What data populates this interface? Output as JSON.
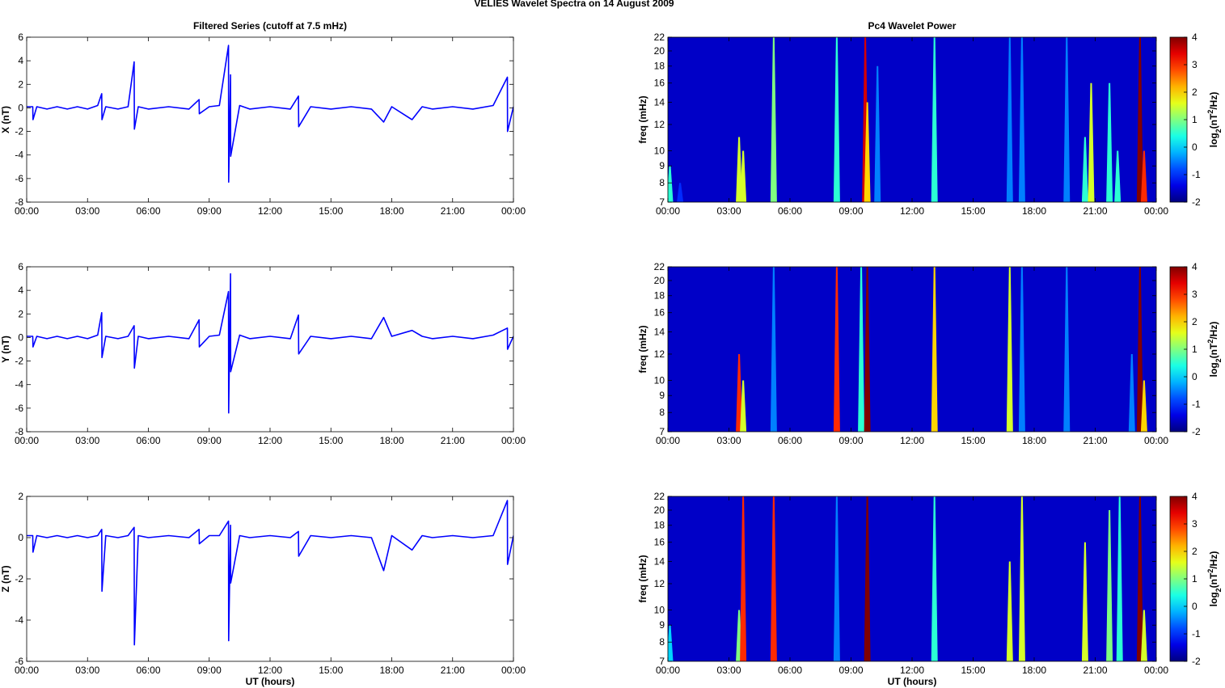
{
  "title": "VELIES Wavelet Spectra on 14 August    2009",
  "chart_data": [
    {
      "type": "line",
      "title": "Filtered Series (cutoff at 7.5 mHz)",
      "ylabel": "X (nT)",
      "color": "#0000ff",
      "x": [
        0,
        0.3,
        0.31,
        0.5,
        1,
        1.5,
        2,
        2.5,
        3,
        3.5,
        3.7,
        3.71,
        3.9,
        4.5,
        5,
        5.3,
        5.31,
        5.5,
        6,
        7,
        8,
        8.5,
        8.51,
        9,
        9.5,
        9.95,
        9.96,
        10.05,
        10.06,
        10.5,
        11,
        12,
        13,
        13.4,
        13.41,
        14,
        15,
        16,
        17,
        17.6,
        18,
        19,
        19.5,
        20,
        21,
        22,
        23,
        23.7,
        23.71,
        24
      ],
      "values": [
        0.1,
        0.1,
        -1.0,
        0.1,
        -0.1,
        0.1,
        -0.1,
        0.1,
        -0.1,
        0.2,
        1.2,
        -1.0,
        0.1,
        -0.1,
        0.1,
        3.9,
        -1.8,
        0.1,
        -0.1,
        0.1,
        -0.1,
        0.7,
        -0.5,
        0.1,
        0.2,
        5.3,
        -6.3,
        2.8,
        -4.1,
        0.2,
        -0.1,
        0.1,
        -0.1,
        1.0,
        -1.6,
        0.1,
        -0.1,
        0.1,
        -0.1,
        -1.2,
        0.1,
        -1.0,
        0.1,
        -0.1,
        0.1,
        -0.1,
        0.2,
        2.6,
        -2.0,
        0.1
      ],
      "xlim": [
        0,
        24
      ],
      "xticks": [
        {
          "value": 0,
          "label": "00:00"
        },
        {
          "value": 3,
          "label": "03:00"
        },
        {
          "value": 6,
          "label": "06:00"
        },
        {
          "value": 9,
          "label": "09:00"
        },
        {
          "value": 12,
          "label": "12:00"
        },
        {
          "value": 15,
          "label": "15:00"
        },
        {
          "value": 18,
          "label": "18:00"
        },
        {
          "value": 21,
          "label": "21:00"
        },
        {
          "value": 24,
          "label": "00:00"
        }
      ],
      "ylim": [
        -8,
        6
      ],
      "yticks": [
        -8,
        -6,
        -4,
        -2,
        0,
        2,
        4,
        6
      ]
    },
    {
      "type": "heatmap",
      "title": "Pc4 Wavelet Power",
      "ylabel": "freq (mHz)",
      "log_y": true,
      "x": [
        0.1,
        0.6,
        3.5,
        3.7,
        5.2,
        8.3,
        9.7,
        9.8,
        10.3,
        13.1,
        16.8,
        17.4,
        19.6,
        20.5,
        20.8,
        21.7,
        22.1,
        23.2,
        23.4
      ],
      "values": [
        0.5,
        -1,
        1.5,
        1.5,
        1,
        0.5,
        3.5,
        2,
        -0.5,
        0.5,
        -0.5,
        -0.5,
        -0.5,
        0.5,
        1.5,
        0.5,
        0.5,
        4,
        3
      ],
      "ymax": [
        9,
        8,
        11,
        10,
        22,
        22,
        22,
        14,
        18,
        22,
        22,
        22,
        22,
        11,
        16,
        16,
        10,
        22,
        10
      ],
      "xlim": [
        0,
        24
      ],
      "xticks": [
        {
          "value": 0,
          "label": "00:00"
        },
        {
          "value": 3,
          "label": "03:00"
        },
        {
          "value": 6,
          "label": "06:00"
        },
        {
          "value": 9,
          "label": "09:00"
        },
        {
          "value": 12,
          "label": "12:00"
        },
        {
          "value": 15,
          "label": "15:00"
        },
        {
          "value": 18,
          "label": "18:00"
        },
        {
          "value": 21,
          "label": "21:00"
        },
        {
          "value": 24,
          "label": "00:00"
        }
      ],
      "ylim": [
        7,
        22
      ],
      "yticks": [
        7,
        8,
        9,
        10,
        12,
        14,
        16,
        18,
        20,
        22
      ],
      "clim": [
        -2,
        4
      ],
      "cticks": [
        -2,
        -1,
        0,
        1,
        2,
        3,
        4
      ],
      "colorbar_label": [
        "log",
        "2",
        "(nT",
        "2",
        "/Hz)"
      ]
    },
    {
      "type": "line",
      "ylabel": "Y (nT)",
      "color": "#0000ff",
      "x": [
        0,
        0.3,
        0.31,
        0.5,
        1,
        1.5,
        2,
        2.5,
        3,
        3.5,
        3.7,
        3.71,
        3.9,
        4.5,
        5,
        5.3,
        5.31,
        5.5,
        6,
        7,
        8,
        8.5,
        8.51,
        9,
        9.5,
        9.95,
        9.96,
        10.05,
        10.06,
        10.5,
        11,
        12,
        13,
        13.4,
        13.41,
        14,
        15,
        16,
        17,
        17.6,
        18,
        19,
        19.5,
        20,
        21,
        22,
        23,
        23.7,
        23.71,
        24
      ],
      "values": [
        0.1,
        0.1,
        -0.8,
        0.1,
        -0.1,
        0.1,
        -0.1,
        0.1,
        -0.1,
        0.2,
        2.1,
        -1.7,
        0.1,
        -0.1,
        0.1,
        1.0,
        -2.6,
        0.1,
        -0.1,
        0.1,
        -0.1,
        1.5,
        -0.8,
        0.1,
        0.2,
        3.9,
        -6.4,
        5.4,
        -2.9,
        0.2,
        -0.1,
        0.1,
        -0.1,
        1.9,
        -1.4,
        0.1,
        -0.1,
        0.1,
        -0.1,
        1.7,
        0.1,
        0.6,
        0.1,
        -0.1,
        0.1,
        -0.1,
        0.2,
        0.8,
        -1.0,
        0.1
      ],
      "xlim": [
        0,
        24
      ],
      "xticks": [
        {
          "value": 0,
          "label": "00:00"
        },
        {
          "value": 3,
          "label": "03:00"
        },
        {
          "value": 6,
          "label": "06:00"
        },
        {
          "value": 9,
          "label": "09:00"
        },
        {
          "value": 12,
          "label": "12:00"
        },
        {
          "value": 15,
          "label": "15:00"
        },
        {
          "value": 18,
          "label": "18:00"
        },
        {
          "value": 21,
          "label": "21:00"
        },
        {
          "value": 24,
          "label": "00:00"
        }
      ],
      "ylim": [
        -8,
        6
      ],
      "yticks": [
        -8,
        -6,
        -4,
        -2,
        0,
        2,
        4,
        6
      ]
    },
    {
      "type": "heatmap",
      "ylabel": "freq (mHz)",
      "log_y": true,
      "x": [
        3.5,
        3.7,
        5.2,
        8.3,
        9.5,
        9.8,
        13.1,
        16.8,
        17.4,
        19.6,
        22.8,
        23.2,
        23.4
      ],
      "values": [
        3,
        1.5,
        -0.5,
        3,
        0.5,
        4,
        2,
        1.5,
        -0.5,
        -0.5,
        -0.5,
        4,
        2
      ],
      "ymax": [
        12,
        10,
        22,
        22,
        22,
        22,
        22,
        22,
        22,
        22,
        12,
        22,
        10
      ],
      "xlim": [
        0,
        24
      ],
      "xticks": [
        {
          "value": 0,
          "label": "00:00"
        },
        {
          "value": 3,
          "label": "03:00"
        },
        {
          "value": 6,
          "label": "06:00"
        },
        {
          "value": 9,
          "label": "09:00"
        },
        {
          "value": 12,
          "label": "12:00"
        },
        {
          "value": 15,
          "label": "15:00"
        },
        {
          "value": 18,
          "label": "18:00"
        },
        {
          "value": 21,
          "label": "21:00"
        },
        {
          "value": 24,
          "label": "00:00"
        }
      ],
      "ylim": [
        7,
        22
      ],
      "yticks": [
        7,
        8,
        9,
        10,
        12,
        14,
        16,
        18,
        20,
        22
      ],
      "clim": [
        -2,
        4
      ],
      "cticks": [
        -2,
        -1,
        0,
        1,
        2,
        3,
        4
      ],
      "colorbar_label": [
        "log",
        "2",
        "(nT",
        "2",
        "/Hz)"
      ]
    },
    {
      "type": "line",
      "ylabel": "Z (nT)",
      "xlabel": "UT (hours)",
      "color": "#0000ff",
      "x": [
        0,
        0.3,
        0.31,
        0.5,
        1,
        1.5,
        2,
        2.5,
        3,
        3.5,
        3.7,
        3.71,
        3.9,
        4.5,
        5,
        5.3,
        5.31,
        5.5,
        6,
        7,
        8,
        8.5,
        8.51,
        9,
        9.5,
        9.95,
        9.96,
        10.05,
        10.06,
        10.5,
        11,
        12,
        13,
        13.4,
        13.41,
        14,
        15,
        16,
        17,
        17.6,
        18,
        19,
        19.5,
        20,
        21,
        22,
        23,
        23.7,
        23.71,
        24
      ],
      "values": [
        0.1,
        0.1,
        -0.7,
        0.1,
        0.0,
        0.1,
        0.0,
        0.1,
        0.0,
        0.1,
        0.4,
        -2.6,
        0.1,
        0.0,
        0.1,
        0.5,
        -5.2,
        0.1,
        0.0,
        0.1,
        0.0,
        0.4,
        -0.3,
        0.1,
        0.1,
        0.8,
        -5.0,
        0.6,
        -2.2,
        0.1,
        0.0,
        0.1,
        0.0,
        0.3,
        -0.9,
        0.1,
        0.0,
        0.1,
        0.0,
        -1.6,
        0.1,
        -0.6,
        0.1,
        0.0,
        0.1,
        0.0,
        0.1,
        1.8,
        -1.3,
        0.1
      ],
      "xlim": [
        0,
        24
      ],
      "xticks": [
        {
          "value": 0,
          "label": "00:00"
        },
        {
          "value": 3,
          "label": "03:00"
        },
        {
          "value": 6,
          "label": "06:00"
        },
        {
          "value": 9,
          "label": "09:00"
        },
        {
          "value": 12,
          "label": "12:00"
        },
        {
          "value": 15,
          "label": "15:00"
        },
        {
          "value": 18,
          "label": "18:00"
        },
        {
          "value": 21,
          "label": "21:00"
        },
        {
          "value": 24,
          "label": "00:00"
        }
      ],
      "ylim": [
        -6,
        2
      ],
      "yticks": [
        -6,
        -4,
        -2,
        0,
        2
      ]
    },
    {
      "type": "heatmap",
      "ylabel": "freq (mHz)",
      "xlabel": "UT (hours)",
      "log_y": true,
      "x": [
        0.1,
        3.5,
        3.7,
        5.2,
        8.3,
        9.8,
        13.1,
        16.8,
        17.4,
        20.5,
        21.7,
        22.2,
        23.2,
        23.4
      ],
      "values": [
        0,
        1,
        3,
        3,
        -0.5,
        4,
        0.5,
        1.5,
        1.5,
        1.5,
        1,
        0.5,
        4,
        1.5
      ],
      "ymax": [
        9,
        10,
        22,
        22,
        22,
        22,
        22,
        14,
        22,
        16,
        20,
        22,
        22,
        10
      ],
      "xlim": [
        0,
        24
      ],
      "xticks": [
        {
          "value": 0,
          "label": "00:00"
        },
        {
          "value": 3,
          "label": "03:00"
        },
        {
          "value": 6,
          "label": "06:00"
        },
        {
          "value": 9,
          "label": "09:00"
        },
        {
          "value": 12,
          "label": "12:00"
        },
        {
          "value": 15,
          "label": "15:00"
        },
        {
          "value": 18,
          "label": "18:00"
        },
        {
          "value": 21,
          "label": "21:00"
        },
        {
          "value": 24,
          "label": "00:00"
        }
      ],
      "ylim": [
        7,
        22
      ],
      "yticks": [
        7,
        8,
        9,
        10,
        12,
        14,
        16,
        18,
        20,
        22
      ],
      "clim": [
        -2,
        4
      ],
      "cticks": [
        -2,
        -1,
        0,
        1,
        2,
        3,
        4
      ],
      "colorbar_label": [
        "log",
        "2",
        "(nT",
        "2",
        "/Hz)"
      ]
    }
  ]
}
